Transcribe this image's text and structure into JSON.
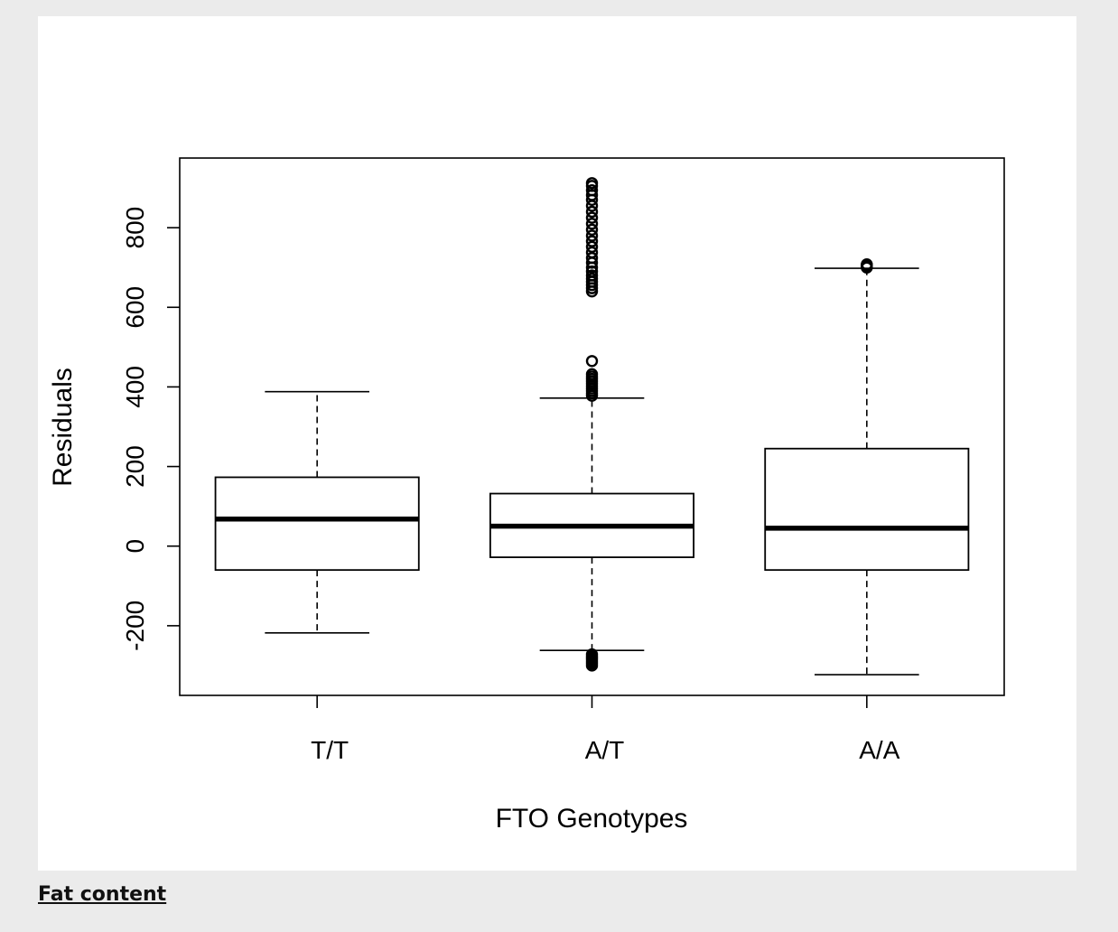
{
  "chart_data": {
    "type": "boxplot",
    "xlabel": "FTO Genotypes",
    "ylabel": "Residuals",
    "ylim": [
      -375,
      975
    ],
    "yticks": [
      -200,
      0,
      200,
      400,
      600,
      800
    ],
    "categories": [
      "T/T",
      "A/T",
      "A/A"
    ],
    "boxes": [
      {
        "category": "T/T",
        "whisker_low": -218,
        "q1": -60,
        "median": 68,
        "q3": 173,
        "whisker_high": 388,
        "outliers": []
      },
      {
        "category": "A/T",
        "whisker_low": -262,
        "q1": -28,
        "median": 50,
        "q3": 132,
        "whisker_high": 372,
        "outliers": [
          -272,
          -277,
          -281,
          -285,
          -290,
          -295,
          -300,
          378,
          384,
          390,
          396,
          402,
          408,
          414,
          420,
          426,
          432,
          465,
          640,
          648,
          656,
          664,
          672,
          680,
          690,
          700,
          712,
          724,
          738,
          752,
          766,
          780,
          795,
          810,
          825,
          840,
          855,
          870,
          882,
          894,
          905,
          912
        ]
      },
      {
        "category": "A/A",
        "whisker_low": -323,
        "q1": -60,
        "median": 45,
        "q3": 245,
        "whisker_high": 698,
        "outliers": [
          700,
          703,
          706,
          708
        ]
      }
    ]
  },
  "caption": {
    "text": "Fat content"
  }
}
